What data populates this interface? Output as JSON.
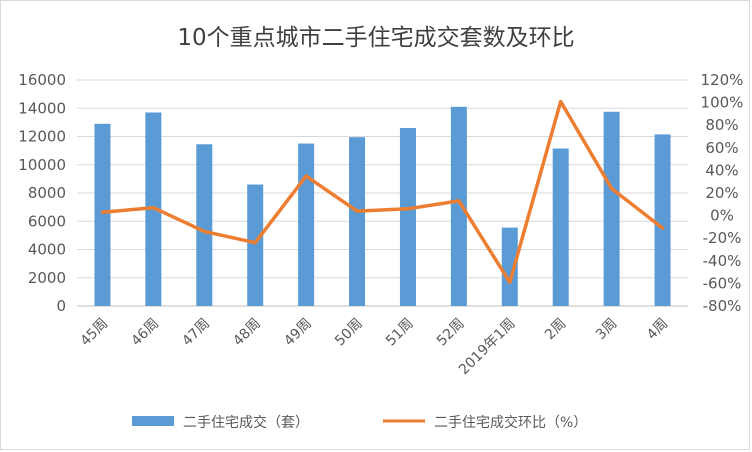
{
  "chart_data": {
    "type": "bar+line",
    "title": "10个重点城市二手住宅成交套数及环比",
    "categories": [
      "45周",
      "46周",
      "47周",
      "48周",
      "49周",
      "50周",
      "51周",
      "52周",
      "2019年1周",
      "2周",
      "3周",
      "4周"
    ],
    "series": [
      {
        "name": "二手住宅成交（套）",
        "type": "bar",
        "axis": "left",
        "color": "#5b9bd5",
        "values": [
          12900,
          13700,
          11450,
          8600,
          11500,
          11950,
          12600,
          14100,
          5550,
          11150,
          13750,
          12150
        ]
      },
      {
        "name": "二手住宅成交环比（%）",
        "type": "line",
        "axis": "right",
        "color": "#ed7d31",
        "values": [
          3,
          7,
          -14,
          -24,
          35,
          4,
          6,
          13,
          -59,
          101,
          24,
          -11
        ]
      }
    ],
    "y_left": {
      "min": 0,
      "max": 16000,
      "step": 2000,
      "ticks": [
        "0",
        "2000",
        "4000",
        "6000",
        "8000",
        "10000",
        "12000",
        "14000",
        "16000"
      ]
    },
    "y_right": {
      "min": -80,
      "max": 120,
      "step": 20,
      "ticks": [
        "-80%",
        "-60%",
        "-40%",
        "-20%",
        "0%",
        "20%",
        "40%",
        "60%",
        "80%",
        "100%",
        "120%"
      ]
    },
    "grid": true,
    "legend_position": "bottom"
  }
}
